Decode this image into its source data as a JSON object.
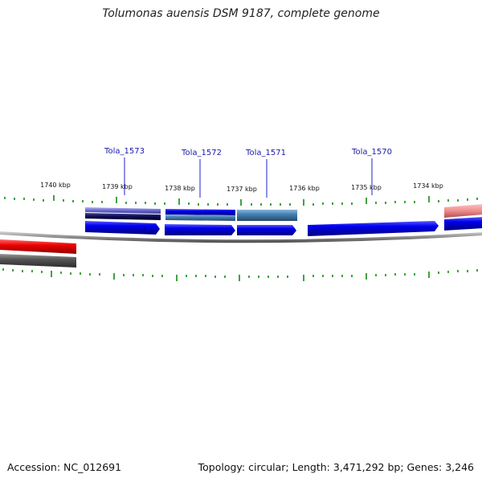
{
  "title": "Tolumonas auensis DSM 9187, complete genome",
  "footer": {
    "accession": "Accession: NC_012691",
    "summary": "Topology: circular; Length: 3,471,292 bp; Genes: 3,246"
  },
  "ruler": [
    {
      "label": "1740 kbp",
      "kbp": 1740
    },
    {
      "label": "1739 kbp",
      "kbp": 1739
    },
    {
      "label": "1738 kbp",
      "kbp": 1738
    },
    {
      "label": "1737 kbp",
      "kbp": 1737
    },
    {
      "label": "1736 kbp",
      "kbp": 1736
    },
    {
      "label": "1735 kbp",
      "kbp": 1735
    },
    {
      "label": "1734 kbp",
      "kbp": 1734
    }
  ],
  "genes": [
    {
      "name": "Tola_1573",
      "kbp": 1738.94
    },
    {
      "name": "Tola_1572",
      "kbp": 1737.87
    },
    {
      "name": "Tola_1571",
      "kbp": 1736.82
    },
    {
      "name": "Tola_1570",
      "kbp": 1734.97
    }
  ],
  "colors": {
    "background": "#ffffff",
    "cds": "#0000ee",
    "backbone": "#8c8c8c",
    "ticks": "#138a13",
    "label_line": "#2222cc",
    "red_feature": "#ee1111",
    "gray_feature": "#555555",
    "steelblue_feature": "#4682b4",
    "navy_feature": "#0a0a50",
    "slateblue_feature": "#6a6ad0",
    "pink_feature": "#ef8c8c"
  }
}
